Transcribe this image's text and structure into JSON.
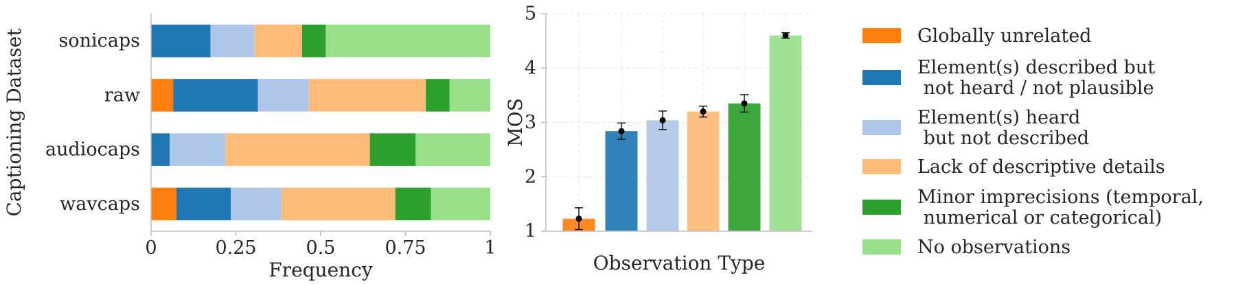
{
  "colors": {
    "globally_unrelated": "#ff7f0e",
    "not_heard": "#1f77b4",
    "not_described": "#aec7e8",
    "lack_details": "#ffbb78",
    "minor_imprecisions": "#2ca02c",
    "no_observations": "#98df8a"
  },
  "chart_data": [
    {
      "type": "bar",
      "orientation": "horizontal",
      "stacked": true,
      "categories": [
        "sonicaps",
        "raw",
        "audiocaps",
        "wavcaps"
      ],
      "series": [
        {
          "name": "Globally unrelated",
          "color_key": "globally_unrelated",
          "values": [
            0.0,
            0.065,
            0.0,
            0.075
          ]
        },
        {
          "name": "Element(s) described but\n not heard / not plausible",
          "color_key": "not_heard",
          "values": [
            0.175,
            0.25,
            0.055,
            0.16
          ]
        },
        {
          "name": "Element(s) heard\n but not described",
          "color_key": "not_described",
          "values": [
            0.13,
            0.15,
            0.165,
            0.15
          ]
        },
        {
          "name": "Lack of descriptive details",
          "color_key": "lack_details",
          "values": [
            0.14,
            0.345,
            0.425,
            0.335
          ]
        },
        {
          "name": "Minor imprecisions (temporal,\n numerical or categorical)",
          "color_key": "minor_imprecisions",
          "values": [
            0.07,
            0.07,
            0.135,
            0.105
          ]
        },
        {
          "name": "No observations",
          "color_key": "no_observations",
          "values": [
            0.485,
            0.12,
            0.22,
            0.175
          ]
        }
      ],
      "xlabel": "Frequency",
      "ylabel": "Captioning Dataset",
      "xlim": [
        0,
        1
      ],
      "xticks": [
        0,
        0.25,
        0.5,
        0.75,
        1
      ],
      "xtick_labels": [
        "0",
        "0.25",
        "0.5",
        "0.75",
        "1"
      ],
      "grid": false
    },
    {
      "type": "bar",
      "categories": [
        "Globally unrelated",
        "Element(s) described but not heard / not plausible",
        "Element(s) heard but not described",
        "Lack of descriptive details",
        "Minor imprecisions (temporal, numerical or categorical)",
        "No observations"
      ],
      "color_keys": [
        "globally_unrelated",
        "not_heard",
        "not_described",
        "lack_details",
        "minor_imprecisions",
        "no_observations"
      ],
      "values": [
        1.23,
        2.84,
        3.04,
        3.2,
        3.35,
        4.6
      ],
      "error": [
        0.2,
        0.15,
        0.17,
        0.1,
        0.16,
        0.05
      ],
      "xlabel": "Observation Type",
      "ylabel": "MOS",
      "ylim": [
        1,
        5
      ],
      "yticks": [
        1,
        2,
        3,
        4,
        5
      ],
      "ytick_labels": [
        "1",
        "2",
        "3",
        "4",
        "5"
      ],
      "grid": true
    }
  ],
  "legend": {
    "placement": "right",
    "items": [
      {
        "lines": [
          "Globally unrelated"
        ],
        "color_key": "globally_unrelated"
      },
      {
        "lines": [
          "Element(s) described but",
          " not heard / not plausible"
        ],
        "color_key": "not_heard"
      },
      {
        "lines": [
          "Element(s) heard",
          " but not described"
        ],
        "color_key": "not_described"
      },
      {
        "lines": [
          "Lack of descriptive details"
        ],
        "color_key": "lack_details"
      },
      {
        "lines": [
          "Minor imprecisions (temporal,",
          " numerical or categorical)"
        ],
        "color_key": "minor_imprecisions"
      },
      {
        "lines": [
          "No observations"
        ],
        "color_key": "no_observations"
      }
    ]
  }
}
